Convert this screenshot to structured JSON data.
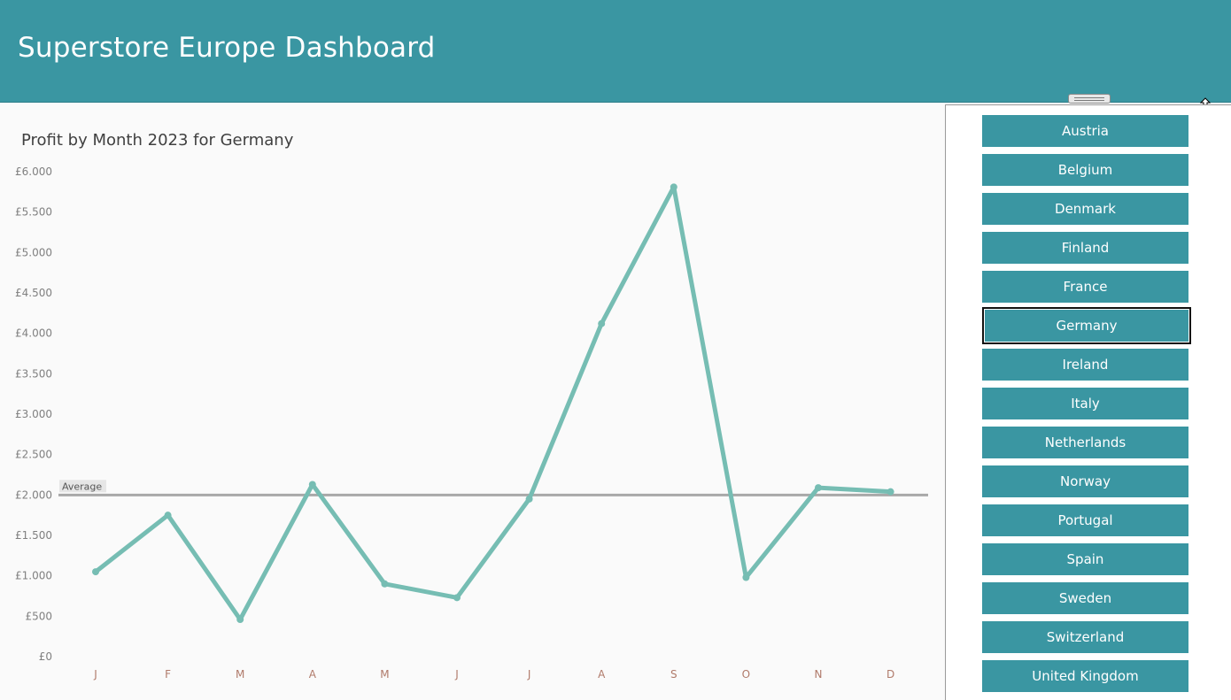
{
  "header": {
    "title": "Superstore Europe Dashboard"
  },
  "chart_data": {
    "type": "line",
    "title": "Profit by Month 2023 for Germany",
    "categories": [
      "J",
      "F",
      "M",
      "A",
      "M",
      "J",
      "J",
      "A",
      "S",
      "O",
      "N",
      "D"
    ],
    "values": [
      1050,
      1750,
      460,
      2130,
      900,
      730,
      1950,
      4120,
      5810,
      980,
      2090,
      2040
    ],
    "ylim": [
      0,
      6000
    ],
    "yticks": [
      0,
      500,
      1000,
      1500,
      2000,
      2500,
      3000,
      3500,
      4000,
      4500,
      5000,
      5500,
      6000
    ],
    "ytick_labels": [
      "£0",
      "£500",
      "£1.000",
      "£1.500",
      "£2.000",
      "£2.500",
      "£3.000",
      "£3.500",
      "£4.000",
      "£4.500",
      "£5.000",
      "£5.500",
      "£6.000"
    ],
    "reference_line": {
      "label": "Average",
      "value": 2000
    },
    "grid": false,
    "colors": {
      "line": "#76bdb3",
      "average": "#a8a8a8",
      "axis_text": "#808080",
      "category_text": "#b07a6a"
    }
  },
  "filter": {
    "selected": "Germany",
    "items": [
      "Austria",
      "Belgium",
      "Denmark",
      "Finland",
      "France",
      "Germany",
      "Ireland",
      "Italy",
      "Netherlands",
      "Norway",
      "Portugal",
      "Spain",
      "Sweden",
      "Switzerland",
      "United Kingdom"
    ]
  },
  "colors": {
    "accent": "#3a96a2",
    "header_text": "#ffffff"
  },
  "icons": {
    "resize_handle": "grip-handle-icon",
    "cursor": "vertical-resize-cursor-icon"
  }
}
